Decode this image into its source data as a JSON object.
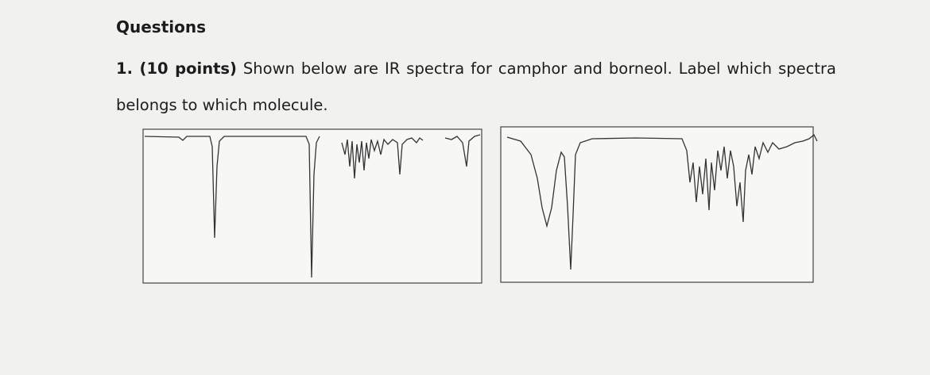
{
  "heading": "Questions",
  "question": {
    "label": "1. (10 points)",
    "text": "Shown below are IR spectra for camphor and borneol. Label which spectra belongs to which molecule."
  }
}
